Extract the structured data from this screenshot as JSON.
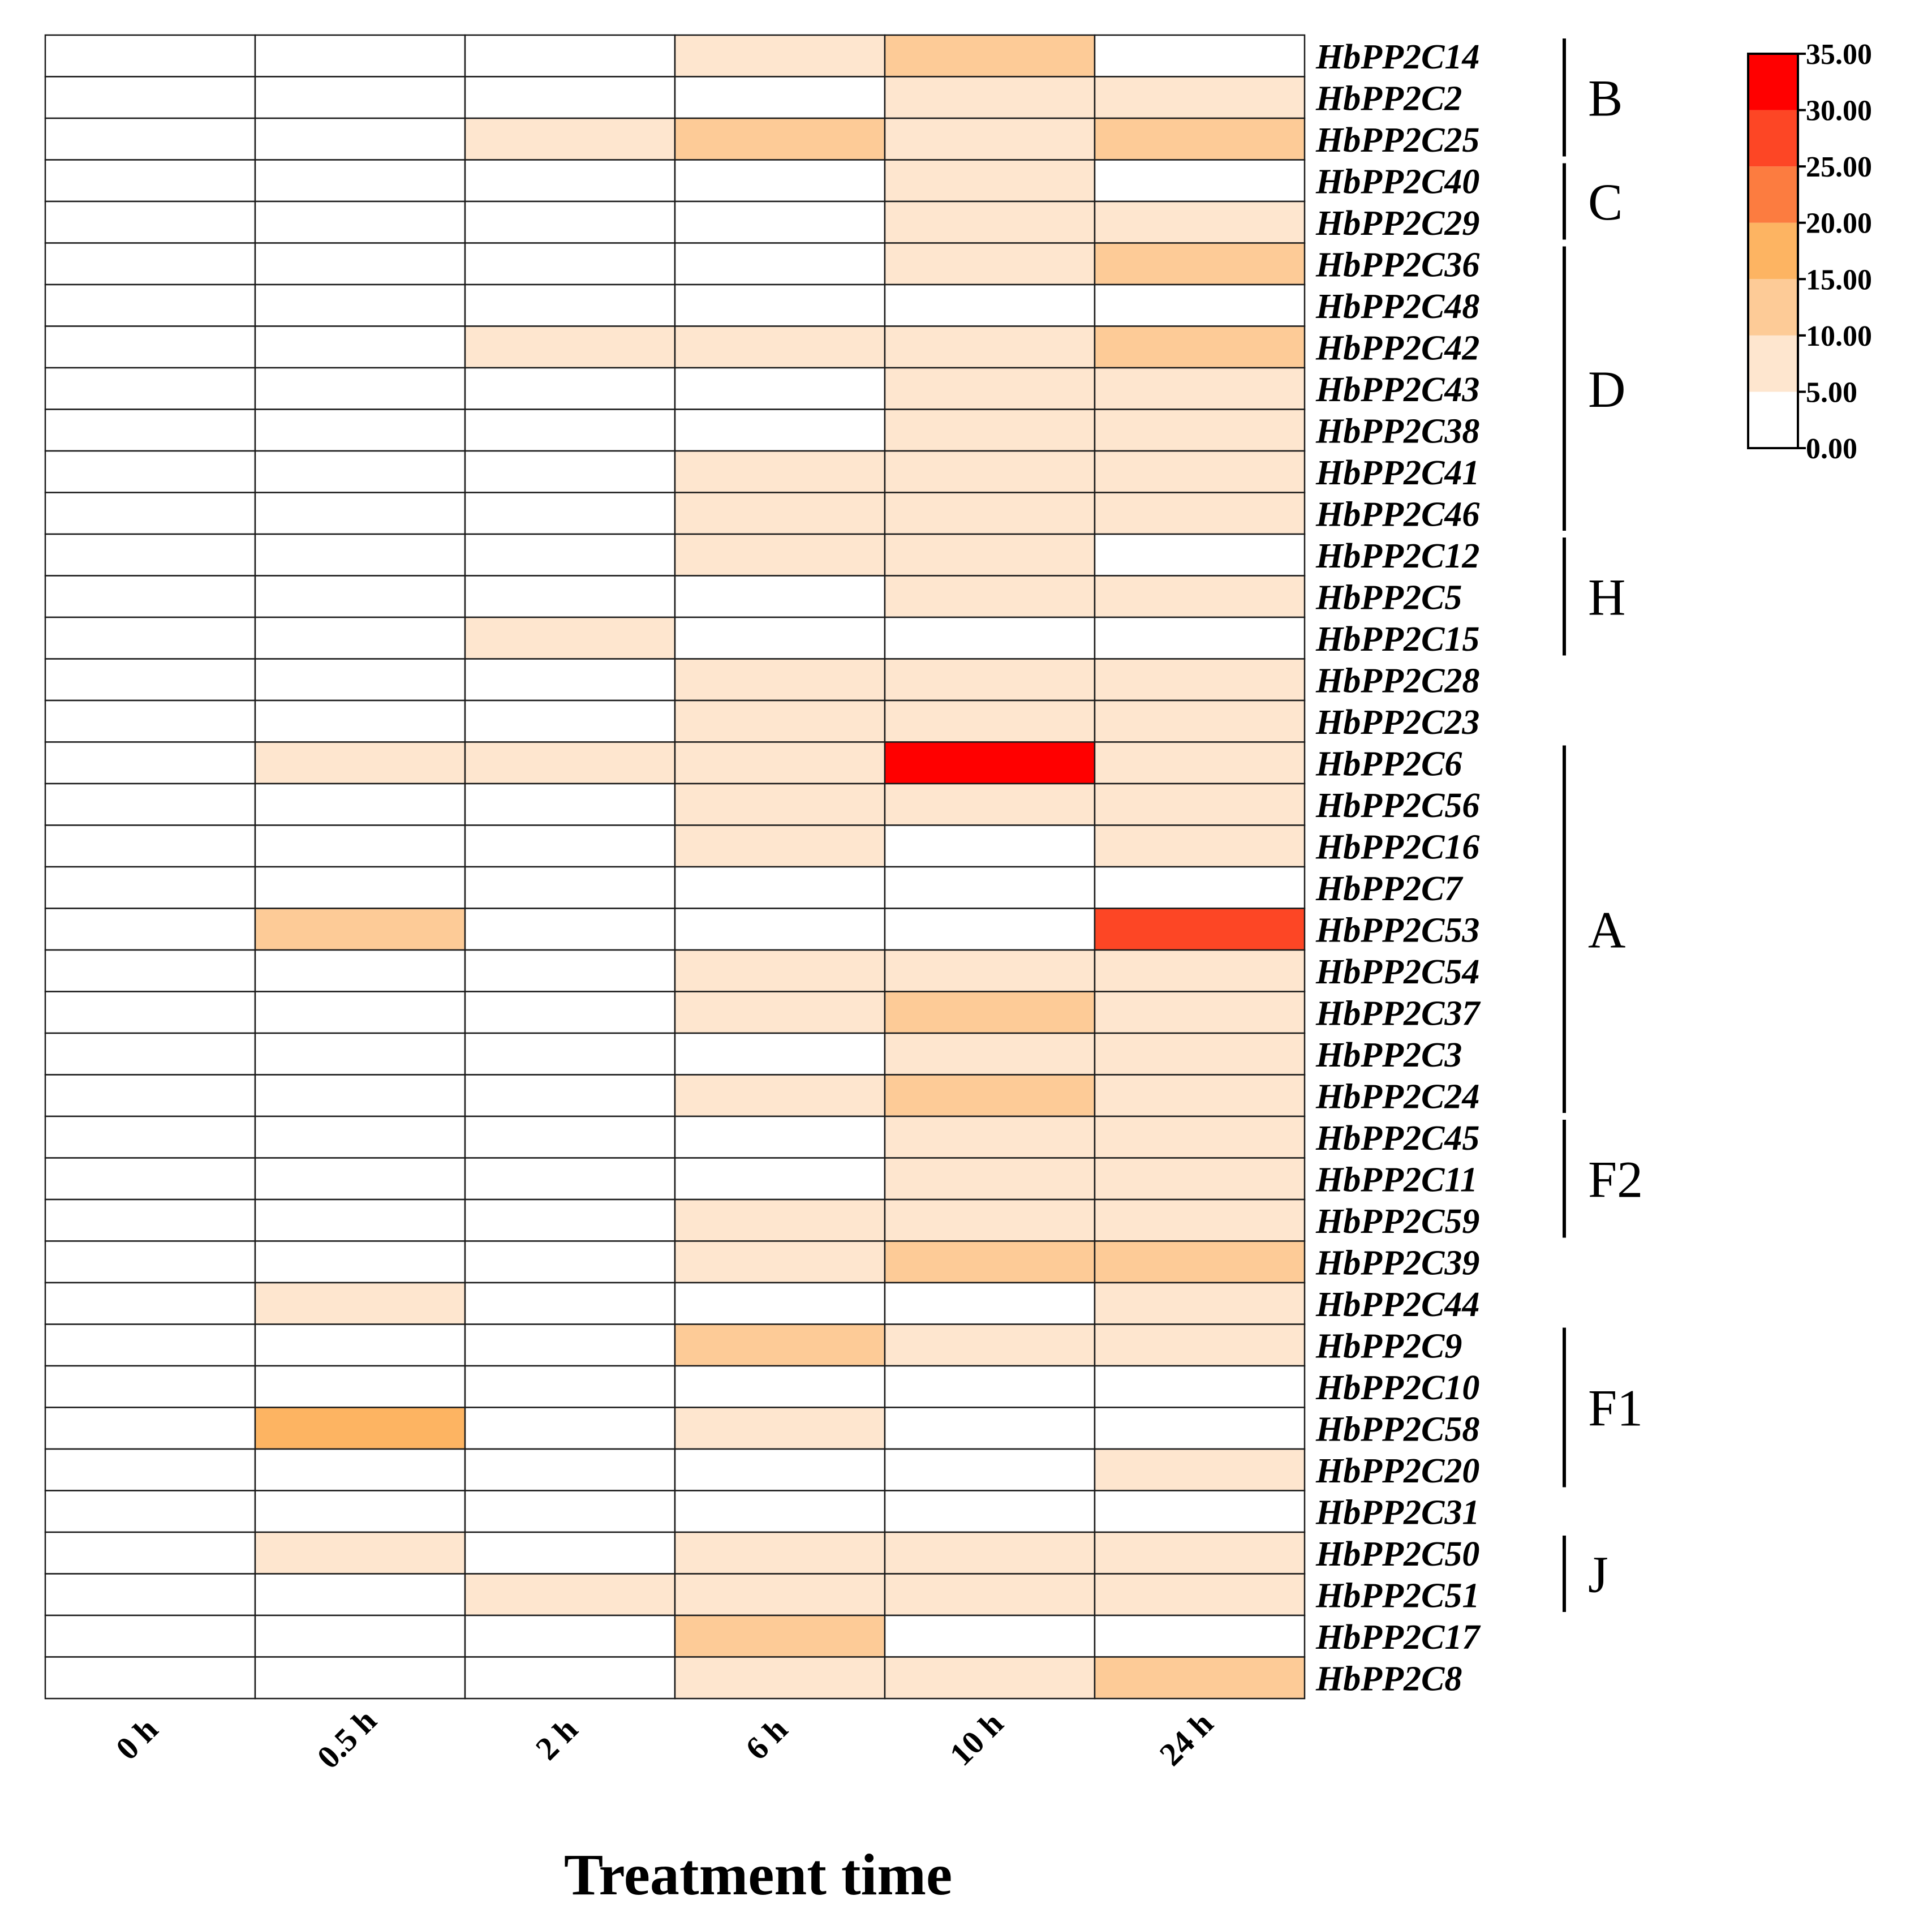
{
  "chart_data": {
    "type": "heatmap",
    "title": "",
    "xlabel": "Treatment time",
    "ylabel": "",
    "columns": [
      "0 h",
      "0.5 h",
      "2 h",
      "6 h",
      "10 h",
      "24 h"
    ],
    "rows": [
      "HbPP2C14",
      "HbPP2C2",
      "HbPP2C25",
      "HbPP2C40",
      "HbPP2C29",
      "HbPP2C36",
      "HbPP2C48",
      "HbPP2C42",
      "HbPP2C43",
      "HbPP2C38",
      "HbPP2C41",
      "HbPP2C46",
      "HbPP2C12",
      "HbPP2C5",
      "HbPP2C15",
      "HbPP2C28",
      "HbPP2C23",
      "HbPP2C6",
      "HbPP2C56",
      "HbPP2C16",
      "HbPP2C7",
      "HbPP2C53",
      "HbPP2C54",
      "HbPP2C37",
      "HbPP2C3",
      "HbPP2C24",
      "HbPP2C45",
      "HbPP2C11",
      "HbPP2C59",
      "HbPP2C39",
      "HbPP2C44",
      "HbPP2C9",
      "HbPP2C10",
      "HbPP2C58",
      "HbPP2C20",
      "HbPP2C31",
      "HbPP2C50",
      "HbPP2C51",
      "HbPP2C17",
      "HbPP2C8"
    ],
    "values": [
      [
        1,
        1,
        1,
        7,
        12,
        1
      ],
      [
        1,
        1,
        1,
        1,
        7,
        7
      ],
      [
        1,
        1,
        7,
        12,
        7,
        12
      ],
      [
        1,
        1,
        1,
        1,
        7,
        1
      ],
      [
        1,
        1,
        1,
        1,
        7,
        7
      ],
      [
        1,
        1,
        1,
        1,
        7,
        12
      ],
      [
        1,
        1,
        1,
        1,
        1,
        1
      ],
      [
        1,
        1,
        7,
        7,
        7,
        12
      ],
      [
        1,
        1,
        1,
        1,
        7,
        7
      ],
      [
        1,
        1,
        1,
        1,
        7,
        7
      ],
      [
        1,
        1,
        1,
        7,
        7,
        7
      ],
      [
        1,
        1,
        1,
        7,
        7,
        7
      ],
      [
        1,
        1,
        1,
        7,
        7,
        1
      ],
      [
        1,
        1,
        1,
        1,
        7,
        7
      ],
      [
        1,
        1,
        7,
        1,
        1,
        1
      ],
      [
        1,
        1,
        1,
        7,
        7,
        7
      ],
      [
        1,
        1,
        1,
        7,
        7,
        7
      ],
      [
        1,
        7,
        7,
        7,
        33,
        7
      ],
      [
        1,
        1,
        1,
        7,
        7,
        7
      ],
      [
        1,
        1,
        1,
        7,
        1,
        7
      ],
      [
        1,
        1,
        1,
        1,
        1,
        1
      ],
      [
        1,
        12,
        1,
        1,
        1,
        28
      ],
      [
        1,
        1,
        1,
        7,
        7,
        7
      ],
      [
        1,
        1,
        1,
        7,
        12,
        7
      ],
      [
        1,
        1,
        1,
        1,
        7,
        7
      ],
      [
        1,
        1,
        1,
        7,
        12,
        7
      ],
      [
        1,
        1,
        1,
        1,
        7,
        7
      ],
      [
        1,
        1,
        1,
        1,
        7,
        7
      ],
      [
        1,
        1,
        1,
        7,
        7,
        7
      ],
      [
        1,
        1,
        1,
        7,
        12,
        12
      ],
      [
        1,
        7,
        1,
        1,
        1,
        7
      ],
      [
        1,
        1,
        1,
        12,
        7,
        7
      ],
      [
        1,
        1,
        1,
        1,
        1,
        1
      ],
      [
        1,
        17,
        1,
        7,
        1,
        1
      ],
      [
        1,
        1,
        1,
        1,
        1,
        7
      ],
      [
        1,
        1,
        1,
        1,
        1,
        1
      ],
      [
        1,
        7,
        1,
        7,
        7,
        7
      ],
      [
        1,
        1,
        7,
        7,
        7,
        7
      ],
      [
        1,
        1,
        1,
        12,
        1,
        1
      ],
      [
        1,
        1,
        1,
        7,
        7,
        12
      ]
    ],
    "groups": [
      {
        "label": "B",
        "start": 0,
        "end": 2
      },
      {
        "label": "C",
        "start": 3,
        "end": 4
      },
      {
        "label": "D",
        "start": 5,
        "end": 11
      },
      {
        "label": "H",
        "start": 12,
        "end": 14
      },
      {
        "label": "A",
        "start": 17,
        "end": 25
      },
      {
        "label": "F2",
        "start": 26,
        "end": 28
      },
      {
        "label": "F1",
        "start": 31,
        "end": 34
      },
      {
        "label": "J",
        "start": 36,
        "end": 37
      }
    ],
    "scale": {
      "ticks": [
        "35.00",
        "30.00",
        "25.00",
        "20.00",
        "15.00",
        "10.00",
        "5.00",
        "0.00"
      ],
      "min": 0,
      "max": 35,
      "bins": [
        {
          "from": 0,
          "to": 5,
          "color": "#ffffff"
        },
        {
          "from": 5,
          "to": 10,
          "color": "#fee6cf"
        },
        {
          "from": 10,
          "to": 15,
          "color": "#fdcb97"
        },
        {
          "from": 15,
          "to": 20,
          "color": "#fdb462"
        },
        {
          "from": 20,
          "to": 25,
          "color": "#fc7c40"
        },
        {
          "from": 25,
          "to": 30,
          "color": "#fd4625"
        },
        {
          "from": 30,
          "to": 35,
          "color": "#ff0000"
        }
      ]
    },
    "legend_position": "top-right",
    "grid": true
  }
}
